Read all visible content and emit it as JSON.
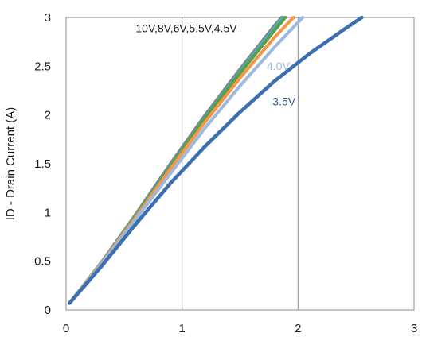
{
  "chart_data": {
    "type": "line",
    "title": "",
    "xlabel": "",
    "ylabel": "ID - Drain Current (A)",
    "xlim": [
      0,
      3
    ],
    "ylim": [
      0,
      3
    ],
    "x_ticks": [
      "0",
      "1",
      "2",
      "3"
    ],
    "y_ticks": [
      "0",
      "0.5",
      "1",
      "1.5",
      "2",
      "2.5",
      "3"
    ],
    "grid": true,
    "legend": "none",
    "annotations": [
      {
        "text": "10V,8V,6V,5.5V,4.5V",
        "x": 0.6,
        "y": 2.85,
        "color": "#1a1a1a"
      },
      {
        "text": "4.0V",
        "x": 1.73,
        "y": 2.46,
        "color": "#9db9dd"
      },
      {
        "text": "3.5V",
        "x": 1.78,
        "y": 2.1,
        "color": "#2e5d8c"
      }
    ],
    "series": [
      {
        "color": "#7f7f7f",
        "values": [
          [
            0.03,
            0.07
          ],
          [
            0.3,
            0.48
          ],
          [
            0.6,
            0.98
          ],
          [
            0.9,
            1.5
          ],
          [
            1.2,
            2.0
          ],
          [
            1.5,
            2.47
          ],
          [
            1.8,
            2.92
          ],
          [
            1.86,
            3.0
          ]
        ]
      },
      {
        "color": "#4bacc6",
        "values": [
          [
            0.03,
            0.07
          ],
          [
            0.3,
            0.48
          ],
          [
            0.6,
            0.97
          ],
          [
            0.9,
            1.48
          ],
          [
            1.2,
            1.98
          ],
          [
            1.5,
            2.45
          ],
          [
            1.8,
            2.9
          ],
          [
            1.87,
            3.0
          ]
        ]
      },
      {
        "color": "#5a9e48",
        "values": [
          [
            0.03,
            0.07
          ],
          [
            0.3,
            0.47
          ],
          [
            0.6,
            0.96
          ],
          [
            0.9,
            1.47
          ],
          [
            1.2,
            1.97
          ],
          [
            1.5,
            2.43
          ],
          [
            1.8,
            2.87
          ],
          [
            1.89,
            3.0
          ]
        ]
      },
      {
        "color": "#f79646",
        "values": [
          [
            0.03,
            0.07
          ],
          [
            0.3,
            0.47
          ],
          [
            0.6,
            0.95
          ],
          [
            0.9,
            1.45
          ],
          [
            1.2,
            1.93
          ],
          [
            1.5,
            2.38
          ],
          [
            1.8,
            2.8
          ],
          [
            1.96,
            3.0
          ]
        ]
      },
      {
        "color": "#9db9dd",
        "values": [
          [
            0.03,
            0.07
          ],
          [
            0.3,
            0.46
          ],
          [
            0.6,
            0.93
          ],
          [
            0.9,
            1.4
          ],
          [
            1.2,
            1.87
          ],
          [
            1.5,
            2.3
          ],
          [
            1.8,
            2.7
          ],
          [
            2.04,
            3.0
          ]
        ]
      },
      {
        "color": "#3c6fb0",
        "values": [
          [
            0.03,
            0.07
          ],
          [
            0.3,
            0.44
          ],
          [
            0.6,
            0.88
          ],
          [
            0.9,
            1.3
          ],
          [
            1.2,
            1.68
          ],
          [
            1.5,
            2.03
          ],
          [
            1.8,
            2.35
          ],
          [
            2.1,
            2.63
          ],
          [
            2.4,
            2.88
          ],
          [
            2.55,
            3.0
          ]
        ]
      }
    ]
  }
}
